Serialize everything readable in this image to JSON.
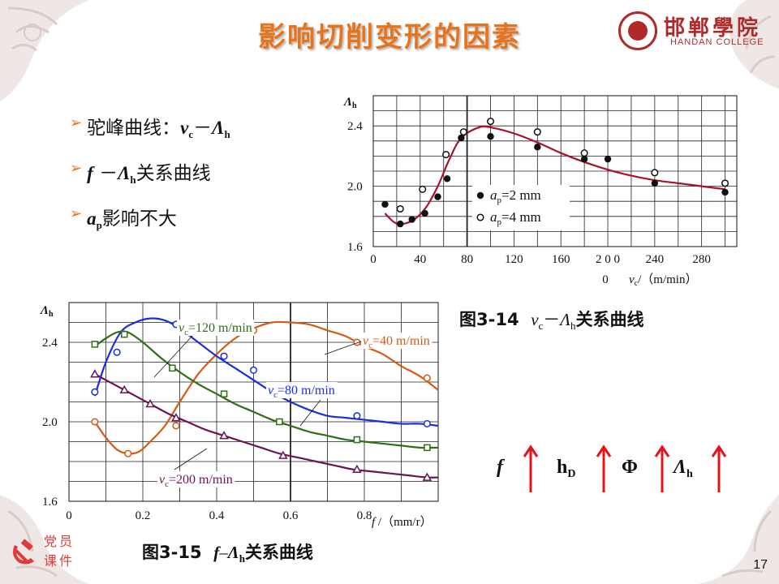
{
  "title": "影响切削变形的因素",
  "logo": {
    "cn": "邯郸學院",
    "en": "HANDAN COLLEGE"
  },
  "bullets": [
    {
      "pre": "驼峰曲线：",
      "sym1": "v",
      "sub1": "c",
      "mid": "－",
      "sym2": "Λ",
      "sub2": "h",
      "post": ""
    },
    {
      "pre": "",
      "sym1": "f",
      "sub1": "",
      "mid": " －",
      "sym2": "Λ",
      "sub2": "h",
      "post": "关系曲线"
    },
    {
      "pre": "",
      "sym1": "a",
      "sub1": "p",
      "mid": "",
      "sym2": "",
      "sub2": "",
      "post": "影响不大"
    }
  ],
  "captions": {
    "fig14": {
      "num": "图3-14",
      "a": "v",
      "a_sub": "c",
      "dash": "－",
      "b": "Λ",
      "b_sub": "h",
      "text": "关系曲线"
    },
    "fig15": {
      "num": "图3-15",
      "a": "f",
      "dash": "–",
      "b": "Λ",
      "b_sub": "h",
      "text": "关系曲线"
    }
  },
  "trend": {
    "items": [
      {
        "label": "f",
        "sub": ""
      },
      {
        "label": "h",
        "sub": "D"
      },
      {
        "label": "Φ",
        "sub": ""
      },
      {
        "label": "Λ",
        "sub": "h"
      }
    ],
    "arrow_color": "#e8121a"
  },
  "badge": {
    "line1": "党员",
    "line2": "课件"
  },
  "page_number": "17",
  "chart_data": [
    {
      "type": "scatter",
      "title": "",
      "xlabel": "vc/（m/min）",
      "ylabel": "Λh",
      "xlim": [
        0,
        310
      ],
      "ylim": [
        1.6,
        2.6
      ],
      "x_ticks": [
        "0",
        "40",
        "80",
        "120",
        "160",
        "2 0 0",
        "240",
        "280"
      ],
      "x_tick_values": [
        0,
        40,
        80,
        120,
        160,
        200,
        240,
        280
      ],
      "x_axis_extra_label": "0",
      "y_ticks": [
        "1.6",
        "2.0",
        "2.4"
      ],
      "y_tick_values": [
        1.6,
        2.0,
        2.4
      ],
      "grid": true,
      "legend": [
        {
          "label": "ap=2 mm",
          "main": "a",
          "sub": "p",
          "rest": "=2 mm",
          "marker": "filled-circle"
        },
        {
          "label": "ap=4 mm",
          "main": "a",
          "sub": "p",
          "rest": "=4 mm",
          "marker": "open-circle"
        }
      ],
      "series": [
        {
          "name": "ap=2 mm",
          "marker": "filled-circle",
          "x": [
            10,
            23,
            33,
            44,
            55,
            63,
            75,
            100,
            140,
            180,
            200,
            240,
            300
          ],
          "y": [
            1.88,
            1.75,
            1.78,
            1.82,
            1.93,
            2.05,
            2.32,
            2.33,
            2.26,
            2.18,
            2.18,
            2.02,
            1.96
          ]
        },
        {
          "name": "ap=4 mm",
          "marker": "open-circle",
          "x": [
            23,
            42,
            62,
            77,
            100,
            140,
            180,
            240,
            300
          ],
          "y": [
            1.85,
            1.98,
            2.21,
            2.36,
            2.43,
            2.36,
            2.22,
            2.09,
            2.02
          ]
        }
      ],
      "fit_curve": {
        "color": "#a8122a",
        "x": [
          10,
          18,
          25,
          35,
          45,
          55,
          65,
          75,
          90,
          100,
          120,
          140,
          160,
          180,
          200,
          220,
          240,
          260,
          280,
          300
        ],
        "y": [
          1.82,
          1.76,
          1.75,
          1.78,
          1.86,
          2.0,
          2.18,
          2.32,
          2.39,
          2.39,
          2.35,
          2.29,
          2.22,
          2.16,
          2.11,
          2.07,
          2.04,
          2.02,
          2.0,
          1.98
        ]
      }
    },
    {
      "type": "line",
      "title": "",
      "xlabel": "f /（mm/r）",
      "ylabel": "Λh",
      "xlim": [
        0,
        1.0
      ],
      "ylim": [
        1.6,
        2.6
      ],
      "x_ticks": [
        "0",
        "0.2",
        "0.4",
        "0.6",
        "0.8"
      ],
      "x_tick_values": [
        0,
        0.2,
        0.4,
        0.6,
        0.8
      ],
      "y_ticks": [
        "1.6",
        "2.0",
        "2.4"
      ],
      "y_tick_values": [
        1.6,
        2.0,
        2.4
      ],
      "grid": true,
      "series": [
        {
          "name": "vc=40 m/min",
          "main": "v",
          "sub": "c",
          "rest": "=40 m/min",
          "color": "#d45a16",
          "marker": "open-circle",
          "x": [
            0.07,
            0.16,
            0.29,
            0.5,
            0.78,
            0.97
          ],
          "y": [
            2.0,
            1.84,
            1.98,
            2.46,
            2.4,
            2.22
          ],
          "curve_x": [
            0.07,
            0.1,
            0.13,
            0.16,
            0.19,
            0.22,
            0.26,
            0.3,
            0.35,
            0.4,
            0.45,
            0.5,
            0.55,
            0.6,
            0.65,
            0.7,
            0.75,
            0.8,
            0.85,
            0.9,
            0.95,
            1.0
          ],
          "curve_y": [
            2.0,
            1.92,
            1.86,
            1.84,
            1.85,
            1.9,
            1.98,
            2.1,
            2.24,
            2.34,
            2.42,
            2.47,
            2.5,
            2.5,
            2.49,
            2.46,
            2.43,
            2.38,
            2.34,
            2.28,
            2.23,
            2.16
          ]
        },
        {
          "name": "vc=80 m/min",
          "main": "v",
          "sub": "c",
          "rest": "=80 m/min",
          "color": "#1a2ee0",
          "marker": "open-circle",
          "x": [
            0.07,
            0.13,
            0.29,
            0.42,
            0.5,
            0.78,
            0.97
          ],
          "y": [
            2.15,
            2.35,
            2.49,
            2.33,
            2.26,
            2.03,
            1.99
          ],
          "curve_x": [
            0.07,
            0.1,
            0.14,
            0.18,
            0.22,
            0.26,
            0.3,
            0.35,
            0.4,
            0.45,
            0.5,
            0.55,
            0.6,
            0.65,
            0.7,
            0.75,
            0.8,
            0.85,
            0.9,
            0.95,
            1.0
          ],
          "curve_y": [
            2.13,
            2.3,
            2.45,
            2.5,
            2.52,
            2.51,
            2.47,
            2.4,
            2.33,
            2.27,
            2.21,
            2.15,
            2.1,
            2.06,
            2.03,
            2.02,
            2.01,
            2.0,
            1.99,
            1.99,
            1.98
          ]
        },
        {
          "name": "vc=120 m/min",
          "main": "v",
          "sub": "c",
          "rest": "=120 m/min",
          "color": "#2e6e14",
          "marker": "open-square",
          "x": [
            0.07,
            0.15,
            0.28,
            0.42,
            0.57,
            0.78,
            0.97
          ],
          "y": [
            2.39,
            2.44,
            2.27,
            2.14,
            2.0,
            1.91,
            1.87
          ],
          "curve_x": [
            0.07,
            0.1,
            0.13,
            0.16,
            0.2,
            0.25,
            0.3,
            0.35,
            0.4,
            0.45,
            0.5,
            0.55,
            0.6,
            0.65,
            0.7,
            0.75,
            0.8,
            0.85,
            0.9,
            0.95,
            1.0
          ],
          "curve_y": [
            2.38,
            2.42,
            2.45,
            2.45,
            2.4,
            2.32,
            2.25,
            2.19,
            2.14,
            2.09,
            2.05,
            2.01,
            1.98,
            1.95,
            1.93,
            1.91,
            1.9,
            1.89,
            1.88,
            1.87,
            1.87
          ]
        },
        {
          "name": "vc=200 m/min",
          "main": "v",
          "sub": "c",
          "rest": "=200 m/min",
          "color": "#6a1456",
          "marker": "open-triangle",
          "x": [
            0.07,
            0.15,
            0.22,
            0.29,
            0.42,
            0.58,
            0.78,
            0.97
          ],
          "y": [
            2.24,
            2.16,
            2.09,
            2.02,
            1.93,
            1.83,
            1.76,
            1.72
          ],
          "curve_x": [
            0.07,
            0.12,
            0.17,
            0.22,
            0.27,
            0.32,
            0.37,
            0.42,
            0.47,
            0.52,
            0.57,
            0.62,
            0.67,
            0.72,
            0.77,
            0.82,
            0.87,
            0.92,
            0.97,
            1.0
          ],
          "curve_y": [
            2.24,
            2.19,
            2.14,
            2.09,
            2.04,
            2.0,
            1.96,
            1.93,
            1.9,
            1.87,
            1.84,
            1.82,
            1.8,
            1.78,
            1.76,
            1.75,
            1.74,
            1.73,
            1.72,
            1.72
          ]
        }
      ]
    }
  ]
}
